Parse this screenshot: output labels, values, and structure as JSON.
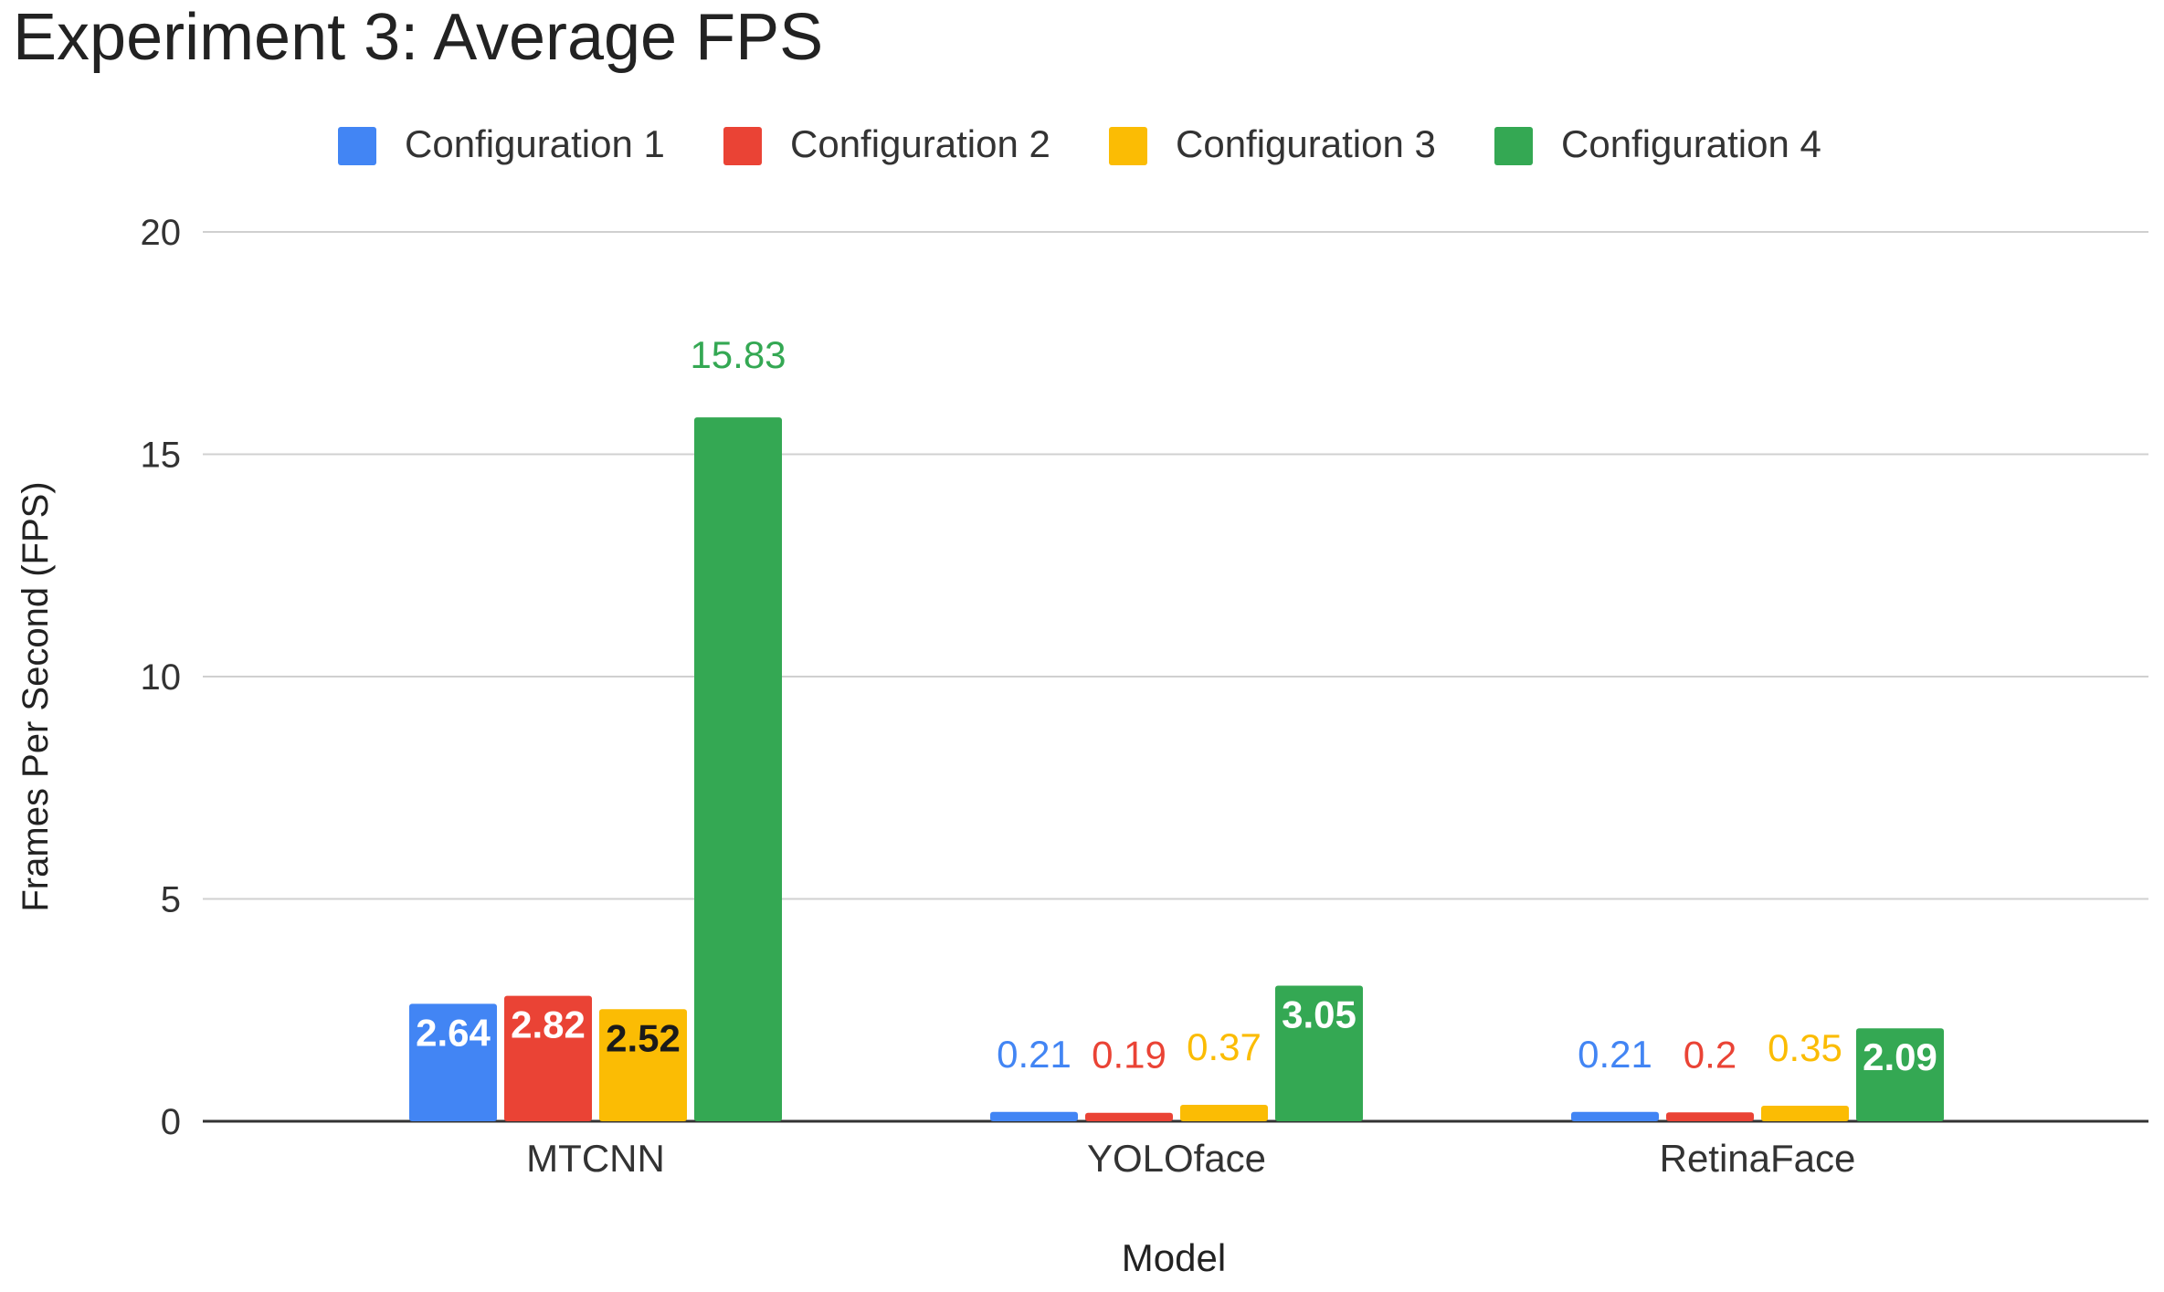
{
  "chart_data": {
    "type": "bar",
    "title": "Experiment 3: Average FPS",
    "xlabel": "Model",
    "ylabel": "Frames Per Second (FPS)",
    "categories": [
      "MTCNN",
      "YOLOface",
      "RetinaFace"
    ],
    "ylim": [
      0,
      20
    ],
    "yticks": [
      0,
      5,
      10,
      15,
      20
    ],
    "ytick_labels": [
      "0",
      "5",
      "10",
      "15",
      "20"
    ],
    "grid": true,
    "legend_position": "top",
    "series": [
      {
        "name": "Configuration 1",
        "color": "#4285F4",
        "values": [
          2.64,
          0.21,
          0.21
        ],
        "labels": [
          "2.64",
          "0.21",
          "0.21"
        ]
      },
      {
        "name": "Configuration 2",
        "color": "#EA4335",
        "values": [
          2.82,
          0.19,
          0.2
        ],
        "labels": [
          "2.82",
          "0.19",
          "0.2"
        ]
      },
      {
        "name": "Configuration 3",
        "color": "#FBBC04",
        "values": [
          2.52,
          0.37,
          0.35
        ],
        "labels": [
          "2.52",
          "0.37",
          "0.35"
        ]
      },
      {
        "name": "Configuration 4",
        "color": "#34A853",
        "values": [
          15.83,
          3.05,
          2.09
        ],
        "labels": [
          "15.83",
          "3.05",
          "2.09"
        ]
      }
    ]
  }
}
